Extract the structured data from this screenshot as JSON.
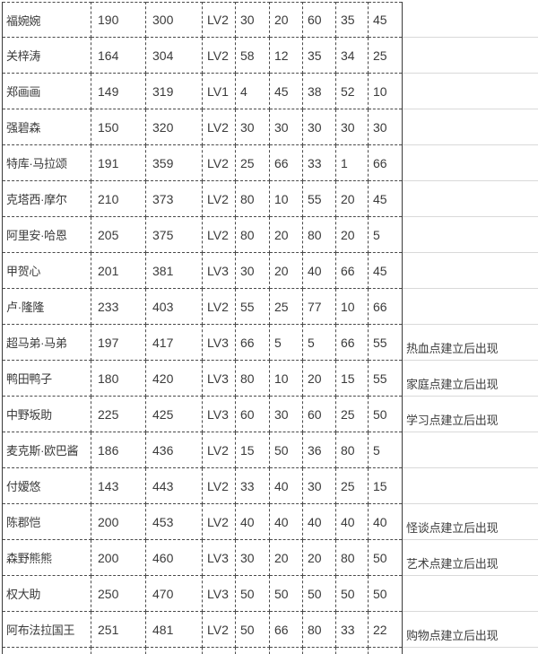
{
  "table": {
    "rows": [
      {
        "name": "福婉婉",
        "values": [
          "190",
          "300",
          "LV2",
          "30",
          "20",
          "60",
          "35",
          "45"
        ],
        "note": ""
      },
      {
        "name": "关梓涛",
        "values": [
          "164",
          "304",
          "LV2",
          "58",
          "12",
          "35",
          "34",
          "25"
        ],
        "note": ""
      },
      {
        "name": "郑画画",
        "values": [
          "149",
          "319",
          "LV1",
          "4",
          "45",
          "38",
          "52",
          "10"
        ],
        "note": ""
      },
      {
        "name": "强碧森",
        "values": [
          "150",
          "320",
          "LV2",
          "30",
          "30",
          "30",
          "30",
          "30"
        ],
        "note": ""
      },
      {
        "name": "特库·马拉颂",
        "values": [
          "191",
          "359",
          "LV2",
          "25",
          "66",
          "33",
          "1",
          "66"
        ],
        "note": ""
      },
      {
        "name": "克塔西·摩尔",
        "values": [
          "210",
          "373",
          "LV2",
          "80",
          "10",
          "55",
          "20",
          "45"
        ],
        "note": ""
      },
      {
        "name": "阿里安·哈恩",
        "values": [
          "205",
          "375",
          "LV2",
          "80",
          "20",
          "80",
          "20",
          "5"
        ],
        "note": ""
      },
      {
        "name": "甲贺心",
        "values": [
          "201",
          "381",
          "LV3",
          "30",
          "20",
          "40",
          "66",
          "45"
        ],
        "note": ""
      },
      {
        "name": "卢·隆隆",
        "values": [
          "233",
          "403",
          "LV2",
          "55",
          "25",
          "77",
          "10",
          "66"
        ],
        "note": ""
      },
      {
        "name": "超马弟·马弟",
        "values": [
          "197",
          "417",
          "LV3",
          "66",
          "5",
          "5",
          "66",
          "55"
        ],
        "note": "热血点建立后出现"
      },
      {
        "name": "鸭田鸭子",
        "values": [
          "180",
          "420",
          "LV3",
          "80",
          "10",
          "20",
          "15",
          "55"
        ],
        "note": "家庭点建立后出现"
      },
      {
        "name": "中野坂助",
        "values": [
          "225",
          "425",
          "LV3",
          "60",
          "30",
          "60",
          "25",
          "50"
        ],
        "note": "学习点建立后出现"
      },
      {
        "name": "麦克斯·欧巴酱",
        "values": [
          "186",
          "436",
          "LV2",
          "15",
          "50",
          "36",
          "80",
          "5"
        ],
        "note": ""
      },
      {
        "name": "付嫒悠",
        "values": [
          "143",
          "443",
          "LV2",
          "33",
          "40",
          "30",
          "25",
          "15"
        ],
        "note": ""
      },
      {
        "name": "陈郡恺",
        "values": [
          "200",
          "453",
          "LV2",
          "40",
          "40",
          "40",
          "40",
          "40"
        ],
        "note": "怪谈点建立后出现"
      },
      {
        "name": "森野熊熊",
        "values": [
          "200",
          "460",
          "LV3",
          "30",
          "20",
          "20",
          "80",
          "50"
        ],
        "note": "艺术点建立后出现"
      },
      {
        "name": "权大助",
        "values": [
          "250",
          "470",
          "LV3",
          "50",
          "50",
          "50",
          "50",
          "50"
        ],
        "note": ""
      },
      {
        "name": "阿布法拉国王",
        "values": [
          "251",
          "481",
          "LV2",
          "50",
          "66",
          "80",
          "33",
          "22"
        ],
        "note": "购物点建立后出现"
      }
    ]
  },
  "colors": {
    "background": "#ffffff",
    "text": "#3a3a3a",
    "dashed_border": "#4a4a4a",
    "solid_border": "#3c3c3c",
    "faint_gridline": "#d9d9d9"
  }
}
